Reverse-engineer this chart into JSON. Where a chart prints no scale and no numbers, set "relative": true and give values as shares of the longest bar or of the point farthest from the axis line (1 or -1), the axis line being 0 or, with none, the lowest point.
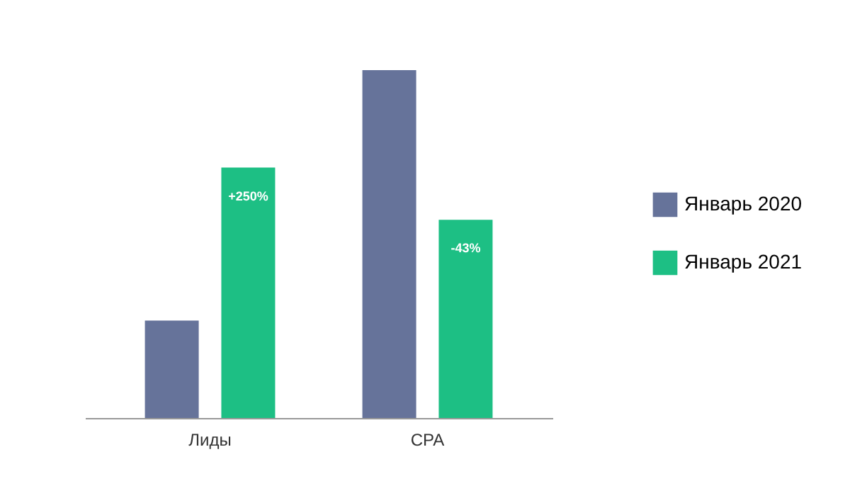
{
  "chart_data": {
    "type": "bar",
    "relative": true,
    "categories": [
      "Лиды",
      "CPA"
    ],
    "series": [
      {
        "name": "Январь 2020",
        "color": "#66739a",
        "values": [
          0.28,
          1
        ]
      },
      {
        "name": "Январь 2021",
        "color": "#1dbf84",
        "values": [
          0.72,
          0.57
        ]
      }
    ],
    "annotations": [
      "+250%",
      "-43%"
    ],
    "legend": "right",
    "grid": false
  }
}
